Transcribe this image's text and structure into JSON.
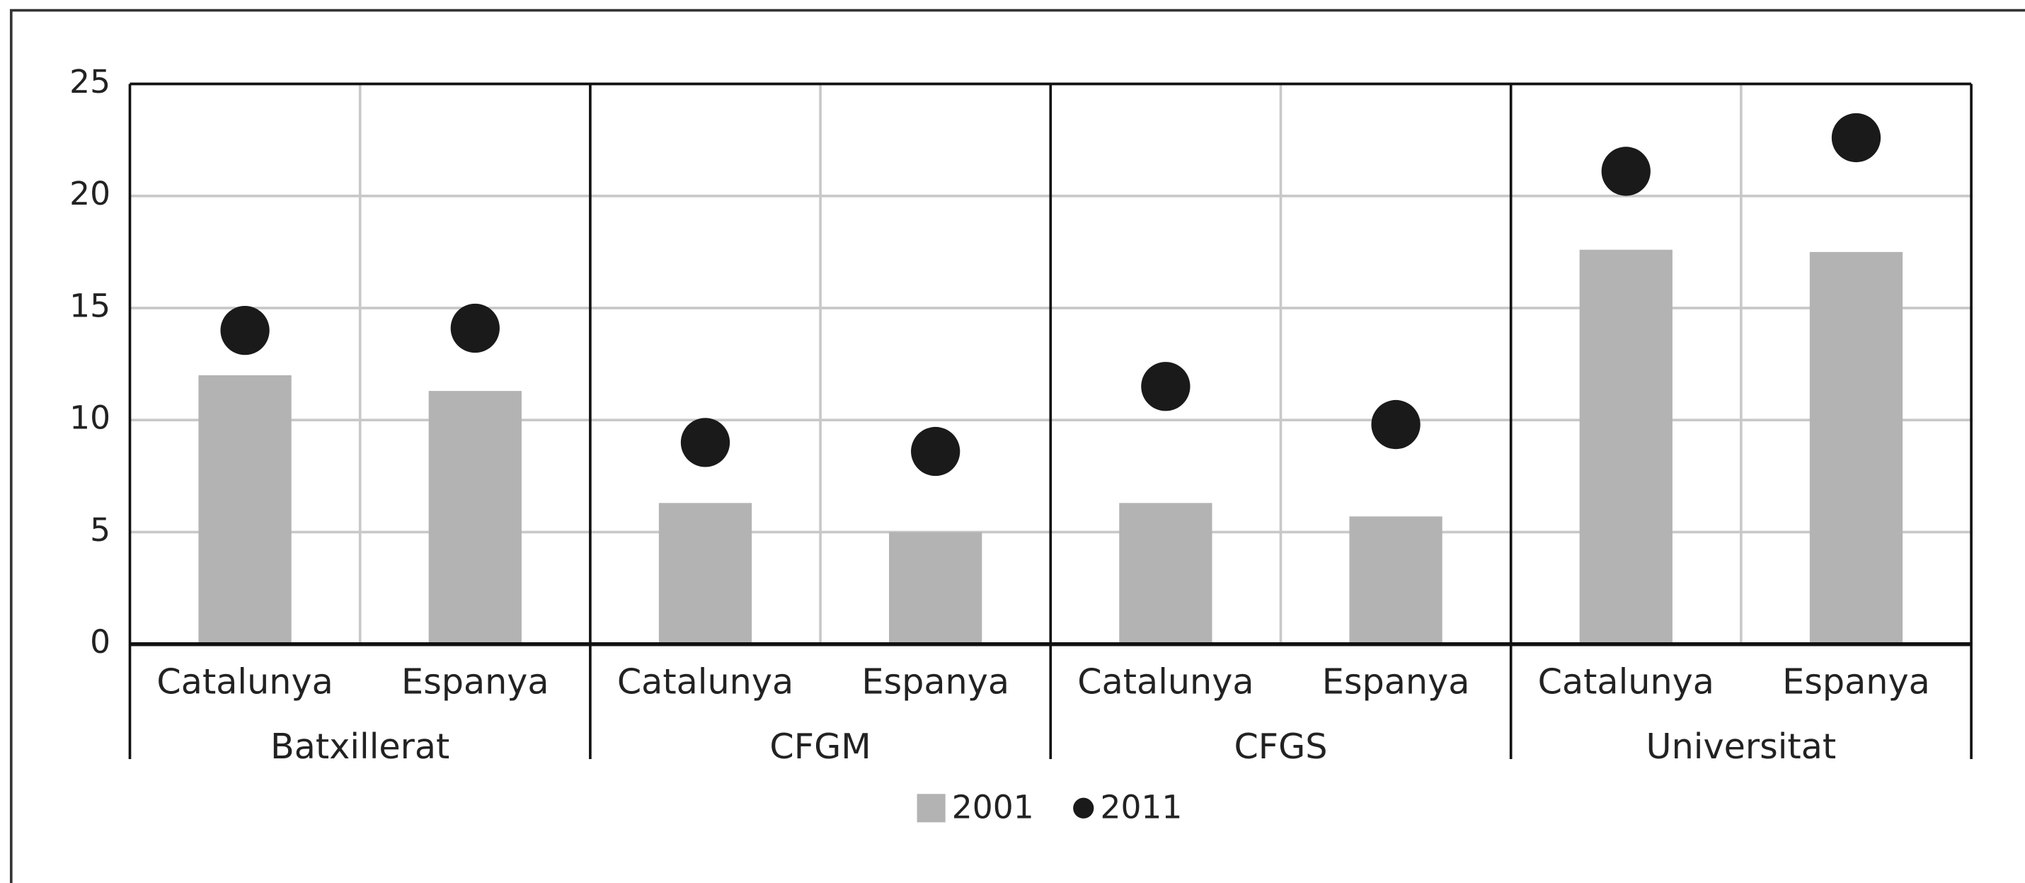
{
  "chart_data": {
    "type": "bar-dot",
    "categories": [
      "Catalunya",
      "Espanya",
      "Catalunya",
      "Espanya",
      "Catalunya",
      "Espanya",
      "Catalunya",
      "Espanya"
    ],
    "groups": [
      "Batxillerat",
      "CFGM",
      "CFGS",
      "Universitat"
    ],
    "series": [
      {
        "name": "2001",
        "color": "#b3b3b3",
        "values": [
          12.0,
          11.3,
          6.3,
          5.0,
          6.3,
          5.7,
          17.6,
          17.5
        ]
      },
      {
        "name": "2011",
        "color": "#1a1a1a",
        "values": [
          14.0,
          14.1,
          9.0,
          8.6,
          11.5,
          9.8,
          21.1,
          22.6
        ]
      }
    ],
    "ylim": [
      0,
      25
    ],
    "yticks": [
      0,
      5,
      10,
      15,
      20,
      25
    ],
    "grid": true,
    "legend": "bottom"
  }
}
